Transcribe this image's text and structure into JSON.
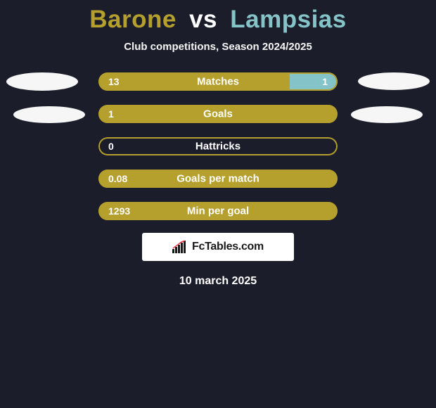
{
  "colors": {
    "background": "#1b1d2a",
    "player1": "#b5a02d",
    "player2": "#84c3c7",
    "title_vs": "#ffffff",
    "text": "#ffffff",
    "subtitle": "#f5f5f5",
    "blob": "#f6f6f6",
    "logo_bg": "#ffffff",
    "logo_text": "#191919"
  },
  "title": {
    "player1": "Barone",
    "vs": "vs",
    "player2": "Lampsias",
    "fontsize": 35
  },
  "subtitle": "Club competitions, Season 2024/2025",
  "stats": [
    {
      "label": "Matches",
      "left_value": "13",
      "right_value": "1",
      "left_pct": 80,
      "right_pct": 20,
      "show_right_value": true
    },
    {
      "label": "Goals",
      "left_value": "1",
      "right_value": "",
      "left_pct": 100,
      "right_pct": 0,
      "show_right_value": false
    },
    {
      "label": "Hattricks",
      "left_value": "0",
      "right_value": "",
      "left_pct": 0,
      "right_pct": 0,
      "show_right_value": false
    },
    {
      "label": "Goals per match",
      "left_value": "0.08",
      "right_value": "",
      "left_pct": 100,
      "right_pct": 0,
      "show_right_value": false
    },
    {
      "label": "Min per goal",
      "left_value": "1293",
      "right_value": "",
      "left_pct": 100,
      "right_pct": 0,
      "show_right_value": false
    }
  ],
  "bar": {
    "track_width": 340,
    "track_height": 26,
    "border_radius": 13,
    "label_fontsize": 15,
    "value_fontsize": 14
  },
  "logo": {
    "text": "FcTables.com"
  },
  "date": "10 march 2025"
}
